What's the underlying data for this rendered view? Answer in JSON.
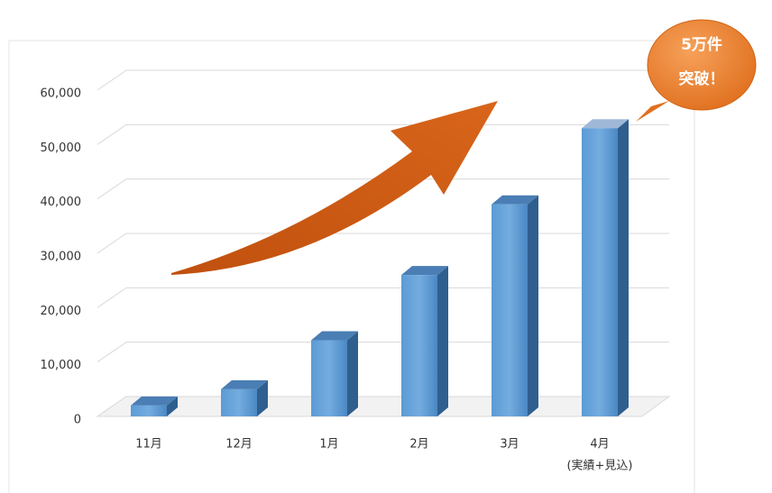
{
  "chart_data": {
    "type": "bar3d",
    "categories": [
      "11月",
      "12月",
      "1月",
      "2月",
      "3月",
      "4月"
    ],
    "category_note": "(実績+見込)",
    "values": [
      2000,
      5000,
      14000,
      26000,
      39000,
      53000
    ],
    "color": "#5b9bd5",
    "ylim": [
      0,
      60000
    ],
    "yticks": [
      0,
      {
        "value": 10000,
        "label": "10,000"
      },
      {
        "value": 20000,
        "label": "20,000"
      },
      {
        "value": 30000,
        "label": "30,000"
      },
      {
        "value": 40000,
        "label": "40,000"
      },
      {
        "value": 50000,
        "label": "50,000"
      },
      {
        "value": 60000,
        "label": "60,000"
      }
    ],
    "grid": true,
    "annotation": [
      "5万件",
      "突破！"
    ]
  }
}
